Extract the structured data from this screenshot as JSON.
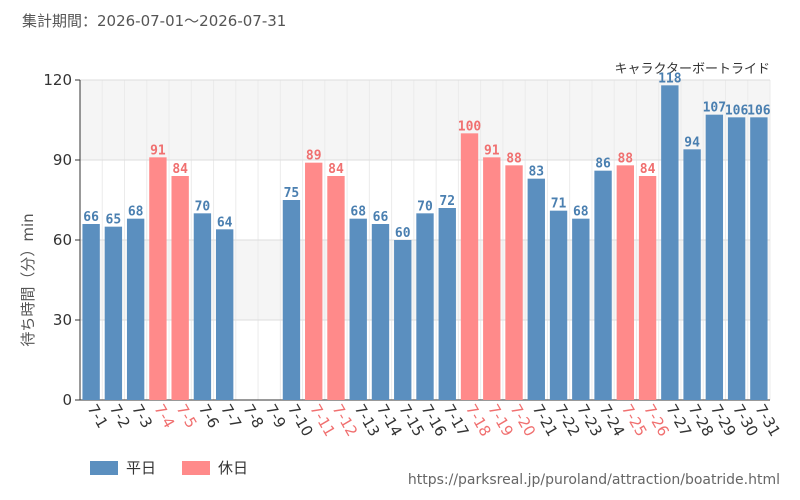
{
  "header": {
    "period": "集計期間：2026-07-01〜2026-07-31"
  },
  "legend": [
    {
      "label": "平日",
      "color": "#5b8fbf"
    },
    {
      "label": "休日",
      "color": "#ff8a8a"
    }
  ],
  "source": "https://parksreal.jp/puroland/attraction/boatride.html",
  "colors": {
    "weekday": "#5b8fbf",
    "holiday": "#ff8a8a",
    "weekday_text": "#4a7fb0",
    "holiday_text": "#f07070",
    "band": "#f5f5f5",
    "grid": "#dddddd"
  },
  "chart_data": {
    "type": "bar",
    "title": "キャラクターボートライド",
    "ylabel": "待ち時間（分）min",
    "ylim": [
      0,
      120
    ],
    "yticks": [
      0,
      30,
      60,
      90,
      120
    ],
    "categories": [
      "7-1",
      "7-2",
      "7-3",
      "7-4",
      "7-5",
      "7-6",
      "7-7",
      "7-8",
      "7-9",
      "7-10",
      "7-11",
      "7-12",
      "7-13",
      "7-14",
      "7-15",
      "7-16",
      "7-17",
      "7-18",
      "7-19",
      "7-20",
      "7-21",
      "7-22",
      "7-23",
      "7-24",
      "7-25",
      "7-26",
      "7-27",
      "7-28",
      "7-29",
      "7-30",
      "7-31"
    ],
    "values": [
      66,
      65,
      68,
      91,
      84,
      70,
      64,
      null,
      null,
      75,
      89,
      84,
      68,
      66,
      60,
      70,
      72,
      100,
      91,
      88,
      83,
      71,
      68,
      86,
      88,
      84,
      118,
      94,
      107,
      106,
      106
    ],
    "day_type": [
      "weekday",
      "weekday",
      "weekday",
      "holiday",
      "holiday",
      "weekday",
      "weekday",
      "weekday",
      "weekday",
      "weekday",
      "holiday",
      "holiday",
      "weekday",
      "weekday",
      "weekday",
      "weekday",
      "weekday",
      "holiday",
      "holiday",
      "holiday",
      "weekday",
      "weekday",
      "weekday",
      "weekday",
      "holiday",
      "holiday",
      "weekday",
      "weekday",
      "weekday",
      "weekday",
      "weekday"
    ],
    "grid": true
  }
}
